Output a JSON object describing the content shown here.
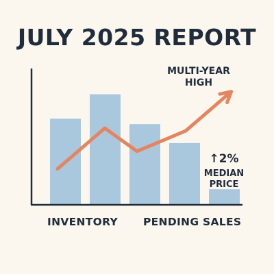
{
  "chart_data": {
    "type": "bar",
    "title": "JULY 2025 REPORT",
    "bars": {
      "values": [
        6.3,
        8.1,
        5.9,
        4.5,
        1.1
      ],
      "color": "#a9c7dd"
    },
    "line": {
      "values": [
        2.6,
        5.6,
        3.9,
        5.4,
        8.1
      ],
      "color": "#e58560",
      "arrow": true
    },
    "ylim": [
      0,
      10
    ],
    "grid": false,
    "category_labels": [
      "INVENTORY",
      "PENDING SALES"
    ],
    "annotations": {
      "peak": [
        "MULTI-YEAR",
        "HIGH"
      ],
      "price_change": "↑2%",
      "price_label": [
        "MEDIAN",
        "PRICE"
      ]
    },
    "colors": {
      "background": "#fcf7ee",
      "text": "#1f2c3b",
      "axis": "#1f2c3b"
    }
  }
}
